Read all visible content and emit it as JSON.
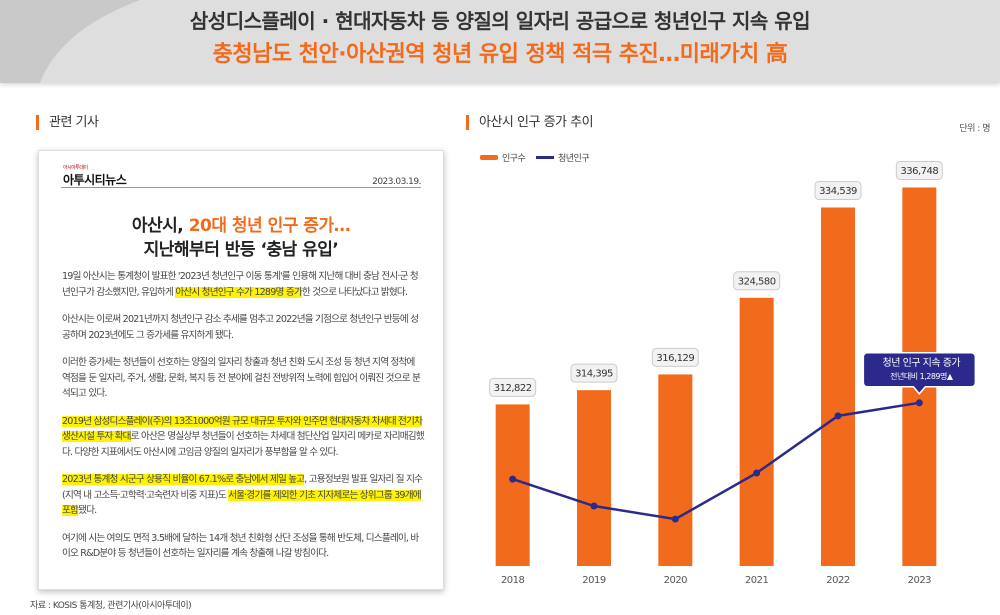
{
  "header": {
    "title": "삼성디스플레이 · 현대자동차 등 양질의 일자리 공급으로 청년인구 지속 유입",
    "subtitle": "충청남도 천안·아산권역 청년 유입 정책 적극 추진…미래가치 高"
  },
  "article": {
    "section_label": "관련 기사",
    "logo_small": "아시아투데이",
    "logo": "아투시티뉴스",
    "date": "2023.03.19.",
    "headline": [
      {
        "text": "아산시, "
      },
      {
        "text": "20대 청년 인구 증가…",
        "highlight": true
      }
    ],
    "headline_2": "지난해부터 반등 ‘충남 유입’",
    "paragraphs": [
      [
        {
          "text": "19일 아산시는 통계청이 발표한 '2023년 청년인구 이동 통계'를 인용해 지난해 대비 충남 전시·군 청년인구가 감소했지만, 유입하게 "
        },
        {
          "text": "아산시 청년인구 수가 1289명 증가",
          "highlight": true
        },
        {
          "text": "한 것으로 나타났다고 밝혔다."
        }
      ],
      [
        {
          "text": "아산시는 이로써 2021년까지 청년인구 감소 추세를 멈추고 2022년을 기점으로 청년인구 반등에 성공하며 2023년에도 그 증가세를 유지하게 됐다."
        }
      ],
      [
        {
          "text": "이러한 증가세는 청년들이 선호하는 양질의 일자리 창출과 청년 친화 도시 조성 등 청년 지역 정착에 역점을 둔 일자리, 주거, 생활, 문화, 복지 등 전 분야에 걸친 전방위적 노력에 힘입어 이뤄진 것으로 분석되고 있다."
        }
      ],
      [
        {
          "text": "2019년 삼성디스플레이(주)의 13조1000억원 규모 대규모 투자와 인주면 현대자동차 차세대 전기차 생산시설 투자 확대",
          "highlight": true
        },
        {
          "text": "로 아산은 명실상부 청년들이 선호하는 차세대 첨단산업 일자리 메카로 자리매김했다. 다양한 지표에서도 아산시에 고임금 양질의 일자리가 풍부함을 알 수 있다."
        }
      ],
      [
        {
          "text": "2023년 통계청 시군구 상용직 비율이 67.1%로 충남에서 제일 높고",
          "highlight": true
        },
        {
          "text": ", 고용정보원 발표 일자리 질 지수(지역 내 고소득·고학력·고숙련자 비중 지표)도 "
        },
        {
          "text": "서울·경기를 제외한 기초 지자체로는 상위그룹 39개에 포함",
          "highlight": true
        },
        {
          "text": "됐다."
        }
      ],
      [
        {
          "text": "여기에 시는 여의도 면적 3.5배에 달하는 14개 청년 친화형 산단 조성을 통해 반도체, 디스플레이, 바이오 R&D분야 등 청년들이 선호하는 일자리를 계속 창출해 나갈 방침이다."
        }
      ]
    ]
  },
  "chart_data": {
    "type": "bar",
    "title": "아산시 인구 증가 추이",
    "unit": "단위 : 명",
    "categories": [
      "2018",
      "2019",
      "2020",
      "2021",
      "2022",
      "2023"
    ],
    "series": [
      {
        "name": "인구수",
        "type": "bar",
        "color": "#f26b1d",
        "values": [
          312822,
          314395,
          316129,
          324580,
          334539,
          336748
        ],
        "value_labels": [
          "312,822",
          "314,395",
          "316,129",
          "324,580",
          "334,539",
          "336,748"
        ]
      },
      {
        "name": "청년인구",
        "type": "line",
        "axis": "y2",
        "color": "#2b2a8c",
        "values": [
          21.3,
          14.7,
          11.5,
          22.8,
          36.8,
          40.0
        ]
      }
    ],
    "ylim": [
      295000,
      340000
    ],
    "y2lim": [
      0,
      100
    ],
    "annotation": {
      "title": "청년 인구 지속 증가",
      "text": "전년대비 1,289명▲"
    }
  },
  "source": "자료 : KOSIS 통계청, 관련기사(아시아투데이)"
}
